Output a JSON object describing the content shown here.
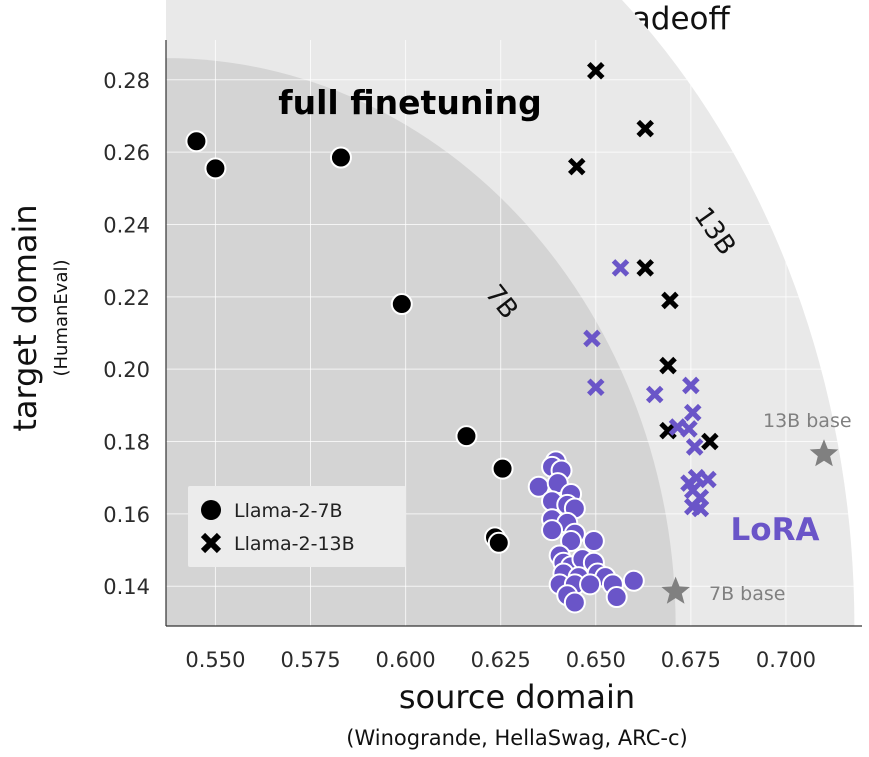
{
  "chart_data": {
    "type": "scatter",
    "title": "Learning-Forgetting Tradeoff",
    "xlabel": "source domain",
    "xlabel_sub": "(Winogrande, HellaSwag, ARC-c)",
    "ylabel": "target domain",
    "ylabel_sub": "(HumanEval)",
    "xlim": [
      0.537,
      0.72
    ],
    "ylim": [
      0.129,
      0.291
    ],
    "xticks": [
      0.55,
      0.575,
      0.6,
      0.625,
      0.65,
      0.675,
      0.7
    ],
    "xtick_labels": [
      "0.550",
      "0.575",
      "0.600",
      "0.625",
      "0.650",
      "0.675",
      "0.700"
    ],
    "yticks": [
      0.14,
      0.16,
      0.18,
      0.2,
      0.22,
      0.24,
      0.26,
      0.28
    ],
    "ytick_labels": [
      "0.14",
      "0.16",
      "0.18",
      "0.20",
      "0.22",
      "0.24",
      "0.26",
      "0.28"
    ],
    "grid": true,
    "legend_position": "bottom-left",
    "legend": [
      {
        "label": "Llama-2-7B",
        "marker": "circle"
      },
      {
        "label": "Llama-2-13B",
        "marker": "x"
      }
    ],
    "regions": [
      {
        "label": "7B",
        "frontier_x_at_ymin": 0.671,
        "frontier_y_at_xmin": 0.286
      },
      {
        "label": "13B",
        "frontier_x_at_ymin": 0.718,
        "frontier_y_at_xmin": 0.36
      }
    ],
    "annotations": {
      "full": "full finetuning",
      "lora": "LoRA",
      "b7": "7B base",
      "b13": "13B base"
    },
    "colors": {
      "full_finetuning": "#000000",
      "lora": "#6a55c8",
      "base": "#808080",
      "region_7b": "#d4d4d4",
      "region_13b": "#e9e9e9"
    },
    "series": [
      {
        "name": "Llama-2-7B full finetuning",
        "marker": "circle",
        "color": "#000000",
        "points": [
          [
            0.545,
            0.263
          ],
          [
            0.55,
            0.2555
          ],
          [
            0.583,
            0.2585
          ],
          [
            0.599,
            0.218
          ],
          [
            0.616,
            0.1815
          ],
          [
            0.6255,
            0.1725
          ],
          [
            0.6235,
            0.1535
          ],
          [
            0.6245,
            0.152
          ]
        ]
      },
      {
        "name": "Llama-2-13B full finetuning",
        "marker": "x",
        "color": "#000000",
        "points": [
          [
            0.65,
            0.2825
          ],
          [
            0.663,
            0.2665
          ],
          [
            0.645,
            0.256
          ],
          [
            0.663,
            0.228
          ],
          [
            0.6695,
            0.219
          ],
          [
            0.669,
            0.201
          ],
          [
            0.669,
            0.183
          ],
          [
            0.68,
            0.18
          ]
        ]
      },
      {
        "name": "Llama-2-7B LoRA",
        "marker": "circle",
        "color": "#6a55c8",
        "points": [
          [
            0.6395,
            0.1745
          ],
          [
            0.6385,
            0.173
          ],
          [
            0.641,
            0.172
          ],
          [
            0.635,
            0.1675
          ],
          [
            0.64,
            0.1685
          ],
          [
            0.6435,
            0.1655
          ],
          [
            0.6385,
            0.1635
          ],
          [
            0.6425,
            0.1625
          ],
          [
            0.6445,
            0.1615
          ],
          [
            0.6385,
            0.1585
          ],
          [
            0.6425,
            0.1575
          ],
          [
            0.6385,
            0.1555
          ],
          [
            0.6445,
            0.1545
          ],
          [
            0.6435,
            0.1525
          ],
          [
            0.6495,
            0.1525
          ],
          [
            0.6405,
            0.1485
          ],
          [
            0.6415,
            0.1465
          ],
          [
            0.6435,
            0.1455
          ],
          [
            0.6465,
            0.1475
          ],
          [
            0.6495,
            0.1465
          ],
          [
            0.6415,
            0.1435
          ],
          [
            0.6455,
            0.1425
          ],
          [
            0.6505,
            0.1435
          ],
          [
            0.6525,
            0.1425
          ],
          [
            0.6405,
            0.1405
          ],
          [
            0.6445,
            0.1405
          ],
          [
            0.6485,
            0.1405
          ],
          [
            0.6545,
            0.1405
          ],
          [
            0.66,
            0.1415
          ],
          [
            0.6425,
            0.1375
          ],
          [
            0.6445,
            0.1355
          ],
          [
            0.6555,
            0.137
          ]
        ]
      },
      {
        "name": "Llama-2-13B LoRA",
        "marker": "x",
        "color": "#6a55c8",
        "points": [
          [
            0.6565,
            0.228
          ],
          [
            0.649,
            0.2085
          ],
          [
            0.65,
            0.195
          ],
          [
            0.6655,
            0.193
          ],
          [
            0.675,
            0.1955
          ],
          [
            0.6755,
            0.188
          ],
          [
            0.6715,
            0.184
          ],
          [
            0.6745,
            0.1835
          ],
          [
            0.676,
            0.1785
          ],
          [
            0.6765,
            0.17
          ],
          [
            0.6745,
            0.1685
          ],
          [
            0.6795,
            0.1695
          ],
          [
            0.6755,
            0.1665
          ],
          [
            0.6775,
            0.1645
          ],
          [
            0.6755,
            0.162
          ],
          [
            0.6775,
            0.1615
          ]
        ]
      },
      {
        "name": "base models",
        "marker": "star",
        "color": "#808080",
        "points": [
          [
            0.671,
            0.1385
          ],
          [
            0.71,
            0.1765
          ]
        ]
      }
    ]
  }
}
